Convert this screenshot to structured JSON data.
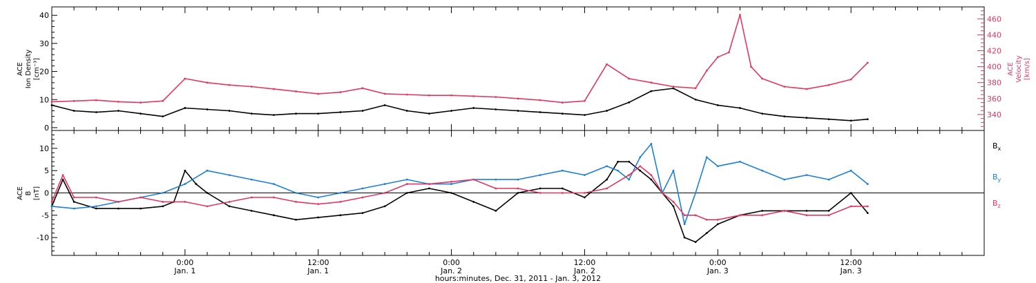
{
  "chart_data": [
    {
      "type": "scatter",
      "title": "",
      "xlabel": "hours:minutes, Dec. 31, 2011 - Jan. 3, 2012",
      "x_tick_labels": [
        {
          "time": "0:00",
          "date": "Jan. 1",
          "hour": 24
        },
        {
          "time": "12:00",
          "date": "Jan. 1",
          "hour": 36
        },
        {
          "time": "0:00",
          "date": "Jan. 2",
          "hour": 48
        },
        {
          "time": "12:00",
          "date": "Jan. 2",
          "hour": 60
        },
        {
          "time": "0:00",
          "date": "Jan. 3",
          "hour": 72
        },
        {
          "time": "12:00",
          "date": "Jan. 3",
          "hour": 84
        }
      ],
      "xlim_hours": [
        12,
        96
      ],
      "ylabel_left": [
        "ACE",
        "Ion Density",
        "[cm⁻³]"
      ],
      "ylim_left": [
        -1,
        43
      ],
      "yticks_left": [
        "0",
        "10",
        "20",
        "30",
        "40"
      ],
      "ylabel_right": [
        "ACE",
        "Velocity",
        "[km/s]"
      ],
      "ylim_right": [
        320,
        475
      ],
      "yticks_right": [
        "340",
        "360",
        "380",
        "400",
        "420",
        "440",
        "460"
      ],
      "series": [
        {
          "name": "Ion Density",
          "color": "#000000",
          "axis": "left",
          "hours": [
            12,
            14,
            16,
            18,
            20,
            22,
            24,
            26,
            28,
            30,
            32,
            34,
            36,
            38,
            40,
            42,
            44,
            46,
            48,
            50,
            52,
            54,
            56,
            58,
            60,
            62,
            64,
            66,
            68,
            70,
            72,
            74,
            76,
            78,
            80,
            82,
            84,
            85.5
          ],
          "values": [
            8,
            6,
            5.5,
            6,
            5,
            4,
            7,
            6.5,
            6,
            5,
            4.5,
            5,
            5,
            5.5,
            6,
            8,
            6,
            5,
            6,
            7,
            6.5,
            6,
            5.5,
            5,
            4.5,
            6,
            9,
            13,
            14,
            10,
            8,
            7,
            5,
            4,
            3.5,
            3,
            2.5,
            3
          ]
        },
        {
          "name": "Velocity",
          "color": "#e3365e",
          "axis": "right",
          "hours": [
            12,
            14,
            16,
            18,
            20,
            22,
            24,
            26,
            28,
            30,
            32,
            34,
            36,
            38,
            40,
            42,
            44,
            46,
            48,
            50,
            52,
            54,
            56,
            58,
            60,
            62,
            64,
            66,
            68,
            70,
            71,
            72,
            73,
            74,
            75,
            76,
            78,
            80,
            82,
            84,
            85.5
          ],
          "values": [
            356,
            357,
            358,
            356,
            355,
            357,
            385,
            380,
            377,
            375,
            372,
            369,
            366,
            368,
            373,
            366,
            365,
            364,
            364,
            363,
            362,
            360,
            358,
            355,
            357,
            403,
            385,
            380,
            375,
            373,
            395,
            412,
            418,
            465,
            400,
            385,
            375,
            372,
            377,
            384,
            405
          ]
        }
      ]
    },
    {
      "type": "scatter",
      "title": "",
      "ylabel": [
        "ACE",
        "B",
        "[nT]"
      ],
      "ylim": [
        -14,
        14
      ],
      "yticks": [
        "-10",
        "-5",
        "0",
        "5",
        "10"
      ],
      "legend": "right",
      "series": [
        {
          "name": "Bx",
          "color": "#000000",
          "hours": [
            12,
            13,
            14,
            16,
            18,
            20,
            22,
            23,
            24,
            25,
            26,
            28,
            30,
            32,
            34,
            36,
            38,
            40,
            42,
            44,
            46,
            48,
            50,
            52,
            54,
            56,
            58,
            60,
            62,
            63,
            64,
            65,
            66,
            67,
            68,
            69,
            70,
            71,
            72,
            74,
            76,
            78,
            80,
            82,
            84,
            85.5
          ],
          "values": [
            -3,
            3,
            -2,
            -3.5,
            -3.5,
            -3.5,
            -3,
            -2,
            5,
            2,
            0,
            -3,
            -4,
            -5,
            -6,
            -5.5,
            -5,
            -4.5,
            -3,
            0,
            1,
            0,
            -2,
            -4,
            0,
            1,
            1,
            -1,
            3,
            7,
            7,
            5,
            3,
            0,
            -3,
            -10,
            -11,
            -9,
            -7,
            -5,
            -4,
            -4,
            -4,
            -4,
            0,
            -4.5
          ]
        },
        {
          "name": "By",
          "color": "#1a7fd8",
          "hours": [
            12,
            14,
            16,
            18,
            20,
            22,
            24,
            26,
            28,
            30,
            32,
            34,
            36,
            38,
            40,
            42,
            44,
            46,
            48,
            50,
            52,
            54,
            56,
            58,
            60,
            62,
            63,
            64,
            65,
            66,
            67,
            68,
            69,
            70,
            71,
            72,
            74,
            76,
            78,
            80,
            82,
            84,
            85.5
          ],
          "values": [
            -3,
            -3.5,
            -3,
            -2,
            -1,
            0,
            2,
            5,
            4,
            3,
            2,
            0,
            -1,
            0,
            1,
            2,
            3,
            2,
            2,
            3,
            3,
            3,
            4,
            5,
            4,
            6,
            5,
            3,
            8,
            11,
            0,
            5,
            -7,
            0,
            8,
            6,
            7,
            5,
            3,
            4,
            3,
            5,
            2
          ]
        },
        {
          "name": "Bz",
          "color": "#e3365e",
          "hours": [
            12,
            13,
            14,
            16,
            18,
            20,
            22,
            24,
            26,
            28,
            30,
            32,
            34,
            36,
            38,
            40,
            42,
            44,
            46,
            48,
            50,
            52,
            54,
            56,
            58,
            60,
            62,
            64,
            65,
            66,
            67,
            68,
            69,
            70,
            71,
            72,
            74,
            76,
            78,
            80,
            82,
            84,
            85.5
          ],
          "values": [
            -2,
            4,
            -1,
            -1,
            -2,
            -1,
            -2,
            -2,
            -3,
            -2,
            -1,
            -1,
            -2,
            -2.5,
            -2,
            -1,
            0,
            2,
            2,
            2.5,
            3,
            1,
            1,
            0,
            0,
            0,
            1,
            4,
            6,
            4,
            0,
            -2,
            -5,
            -5,
            -6,
            -6,
            -5,
            -5,
            -4,
            -5,
            -5,
            -3,
            -3
          ]
        }
      ],
      "legend_entries": [
        {
          "base": "B",
          "sub": "x",
          "color": "#000000"
        },
        {
          "base": "B",
          "sub": "y",
          "color": "#1a7fd8"
        },
        {
          "base": "B",
          "sub": "z",
          "color": "#e3365e"
        }
      ]
    }
  ]
}
